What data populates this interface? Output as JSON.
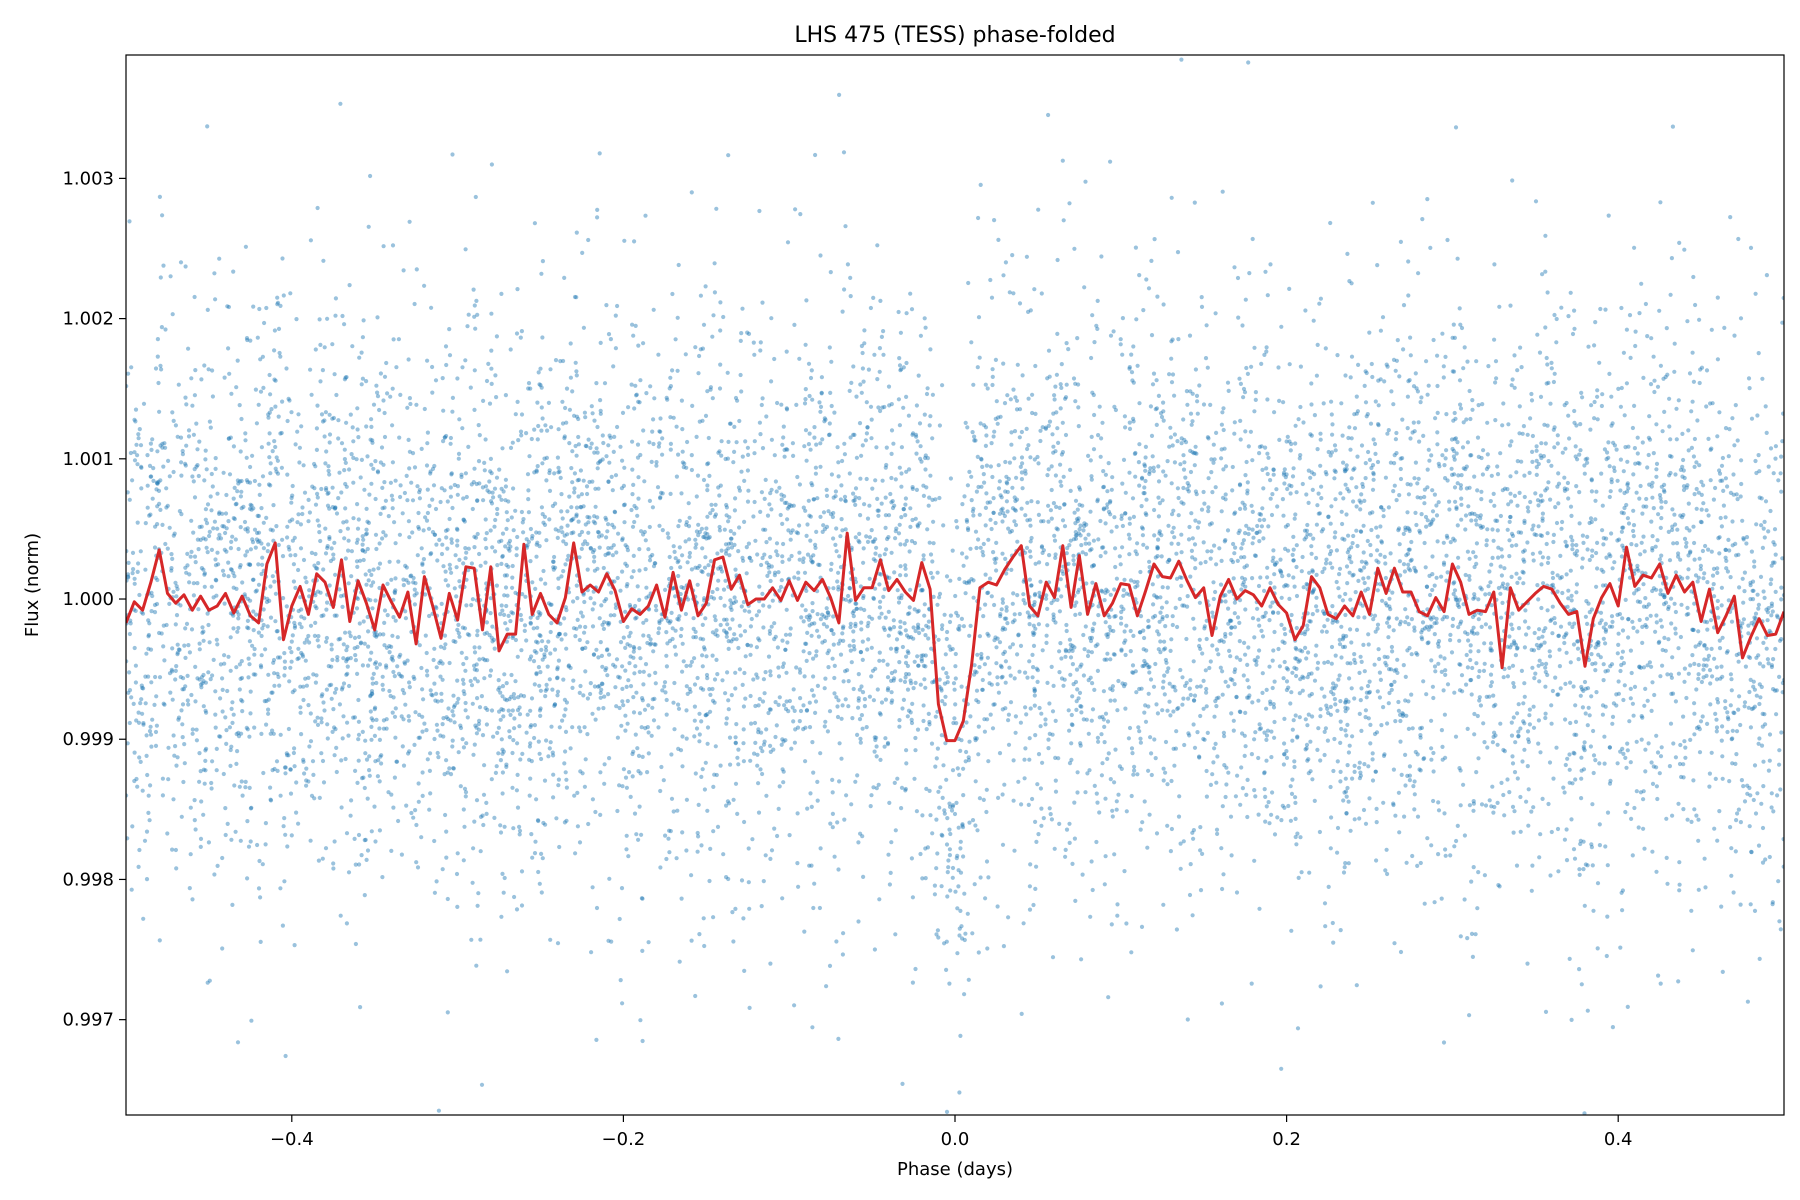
{
  "chart_data": {
    "type": "scatter",
    "title": "LHS 475 (TESS) phase-folded",
    "xlabel": "Phase (days)",
    "ylabel": "Flux (norm)",
    "xlim": [
      -0.5,
      0.5
    ],
    "ylim": [
      0.99632,
      1.00388
    ],
    "x_ticks": [
      {
        "value": -0.4,
        "label": "−0.4"
      },
      {
        "value": -0.2,
        "label": "−0.2"
      },
      {
        "value": 0.0,
        "label": "0.0"
      },
      {
        "value": 0.2,
        "label": "0.2"
      },
      {
        "value": 0.4,
        "label": "0.4"
      }
    ],
    "y_ticks": [
      {
        "value": 0.997,
        "label": "0.997"
      },
      {
        "value": 0.998,
        "label": "0.998"
      },
      {
        "value": 0.999,
        "label": "0.999"
      },
      {
        "value": 1.0,
        "label": "1.000"
      },
      {
        "value": 1.001,
        "label": "1.001"
      },
      {
        "value": 1.002,
        "label": "1.002"
      },
      {
        "value": 1.003,
        "label": "1.003"
      }
    ],
    "grid": false,
    "colors": {
      "points": "#1f77b4",
      "binned_line": "#d62728"
    },
    "scatter_points": {
      "count": 9000,
      "distribution": "approx. Gaussian about 1.0000, sigma ~0.0010; flux dips to ~0.9990 near phase 0"
    },
    "series": [
      {
        "x": [
          -0.5,
          -0.495,
          -0.49,
          -0.485,
          -0.48,
          -0.475,
          -0.47,
          -0.465,
          -0.46,
          -0.455,
          -0.45,
          -0.445,
          -0.44,
          -0.435,
          -0.43,
          -0.425,
          -0.42,
          -0.415,
          -0.41,
          -0.405,
          -0.4,
          -0.395,
          -0.39,
          -0.385,
          -0.38,
          -0.375,
          -0.37,
          -0.365,
          -0.36,
          -0.355,
          -0.35,
          -0.345,
          -0.34,
          -0.335,
          -0.33,
          -0.325,
          -0.32,
          -0.315,
          -0.31,
          -0.305,
          -0.3,
          -0.295,
          -0.29,
          -0.285,
          -0.28,
          -0.275,
          -0.27,
          -0.265,
          -0.26,
          -0.255,
          -0.25,
          -0.245,
          -0.24,
          -0.235,
          -0.23,
          -0.225,
          -0.22,
          -0.215,
          -0.21,
          -0.205,
          -0.2,
          -0.195,
          -0.19,
          -0.185,
          -0.18,
          -0.175,
          -0.17,
          -0.165,
          -0.16,
          -0.155,
          -0.15,
          -0.145,
          -0.14,
          -0.135,
          -0.13,
          -0.125,
          -0.12,
          -0.115,
          -0.11,
          -0.105,
          -0.1,
          -0.095,
          -0.09,
          -0.085,
          -0.08,
          -0.075,
          -0.07,
          -0.065,
          -0.06,
          -0.055,
          -0.05,
          -0.045,
          -0.04,
          -0.035,
          -0.03,
          -0.025,
          -0.02,
          -0.015,
          -0.01,
          -0.005,
          0.0,
          0.005,
          0.01,
          0.015,
          0.02,
          0.025,
          0.03,
          0.035,
          0.04,
          0.045,
          0.05,
          0.055,
          0.06,
          0.065,
          0.07,
          0.075,
          0.08,
          0.085,
          0.09,
          0.095,
          0.1,
          0.105,
          0.11,
          0.115,
          0.12,
          0.125,
          0.13,
          0.135,
          0.14,
          0.145,
          0.15,
          0.155,
          0.16,
          0.165,
          0.17,
          0.175,
          0.18,
          0.185,
          0.19,
          0.195,
          0.2,
          0.205,
          0.21,
          0.215,
          0.22,
          0.225,
          0.23,
          0.235,
          0.24,
          0.245,
          0.25,
          0.255,
          0.26,
          0.265,
          0.27,
          0.275,
          0.28,
          0.285,
          0.29,
          0.295,
          0.3,
          0.305,
          0.31,
          0.315,
          0.32,
          0.325,
          0.33,
          0.335,
          0.34,
          0.345,
          0.35,
          0.355,
          0.36,
          0.365,
          0.37,
          0.375,
          0.38,
          0.385,
          0.39,
          0.395,
          0.4,
          0.405,
          0.41,
          0.415,
          0.42,
          0.425,
          0.43,
          0.435,
          0.44,
          0.445,
          0.45,
          0.455,
          0.46,
          0.465,
          0.47,
          0.475,
          0.48,
          0.485,
          0.49,
          0.495,
          0.5
        ],
        "y": [
          0.99983,
          0.99998,
          0.99992,
          1.00012,
          1.00035,
          1.00004,
          0.99997,
          1.00003,
          0.99992,
          1.00002,
          0.99992,
          0.99995,
          1.00004,
          0.9999,
          1.00002,
          0.99988,
          0.99983,
          1.00025,
          1.0004,
          0.99971,
          0.99995,
          1.00009,
          0.99989,
          1.00018,
          1.00012,
          0.99994,
          1.00028,
          0.99984,
          1.00013,
          0.99997,
          0.99978,
          1.0001,
          0.99998,
          0.99987,
          1.00005,
          0.99968,
          1.00016,
          0.99995,
          0.99972,
          1.00004,
          0.99985,
          1.00023,
          1.00022,
          0.99978,
          1.00023,
          0.99963,
          0.99975,
          0.99975,
          1.00039,
          0.99989,
          1.00004,
          0.99989,
          0.99983,
          1.00001,
          1.0004,
          1.00005,
          1.0001,
          1.00005,
          1.00018,
          1.00006,
          0.99984,
          0.99993,
          0.99989,
          0.99995,
          1.0001,
          0.99987,
          1.00019,
          0.99992,
          1.00013,
          0.99988,
          0.99997,
          1.00028,
          1.0003,
          1.00007,
          1.00017,
          0.99996,
          1.0,
          1.0,
          1.00008,
          0.99999,
          1.00013,
          0.99999,
          1.00012,
          1.00006,
          1.00014,
          1.00001,
          0.99983,
          1.00047,
          0.99999,
          1.00008,
          1.00008,
          1.00028,
          1.00006,
          1.00014,
          1.00005,
          0.99999,
          1.00026,
          1.00007,
          0.99925,
          0.99899,
          0.99899,
          0.99913,
          0.99953,
          1.00008,
          1.00012,
          1.0001,
          1.00021,
          1.0003,
          1.00038,
          0.99995,
          0.99988,
          1.00012,
          1.00001,
          1.00038,
          0.99994,
          1.00031,
          0.99989,
          1.00011,
          0.99988,
          0.99997,
          1.00011,
          1.0001,
          0.99988,
          1.00006,
          1.00025,
          1.00016,
          1.00015,
          1.00027,
          1.00013,
          1.00001,
          1.00008,
          0.99974,
          1.00002,
          1.00014,
          1.0,
          1.00006,
          1.00003,
          0.99995,
          1.00008,
          0.99996,
          0.9999,
          0.99971,
          0.99981,
          1.00016,
          1.00008,
          0.99989,
          0.99986,
          0.99995,
          0.99988,
          1.00005,
          0.99989,
          1.00022,
          1.00004,
          1.00022,
          1.00005,
          1.00005,
          0.99991,
          0.99988,
          1.00001,
          0.99991,
          1.00025,
          1.00012,
          0.99989,
          0.99992,
          0.99991,
          1.00005,
          0.99951,
          1.00008,
          0.99992,
          0.99998,
          1.00004,
          1.00009,
          1.00007,
          0.99997,
          0.99989,
          0.99991,
          0.99952,
          0.99986,
          1.00001,
          1.00011,
          0.99995,
          1.00037,
          1.00009,
          1.00017,
          1.00015,
          1.00025,
          1.00004,
          1.00017,
          1.00005,
          1.00012,
          0.99984,
          1.00007,
          0.99976,
          0.99988,
          1.00002,
          0.99958,
          0.99973,
          0.99986,
          0.99974,
          0.99975,
          0.99991
        ]
      }
    ]
  }
}
